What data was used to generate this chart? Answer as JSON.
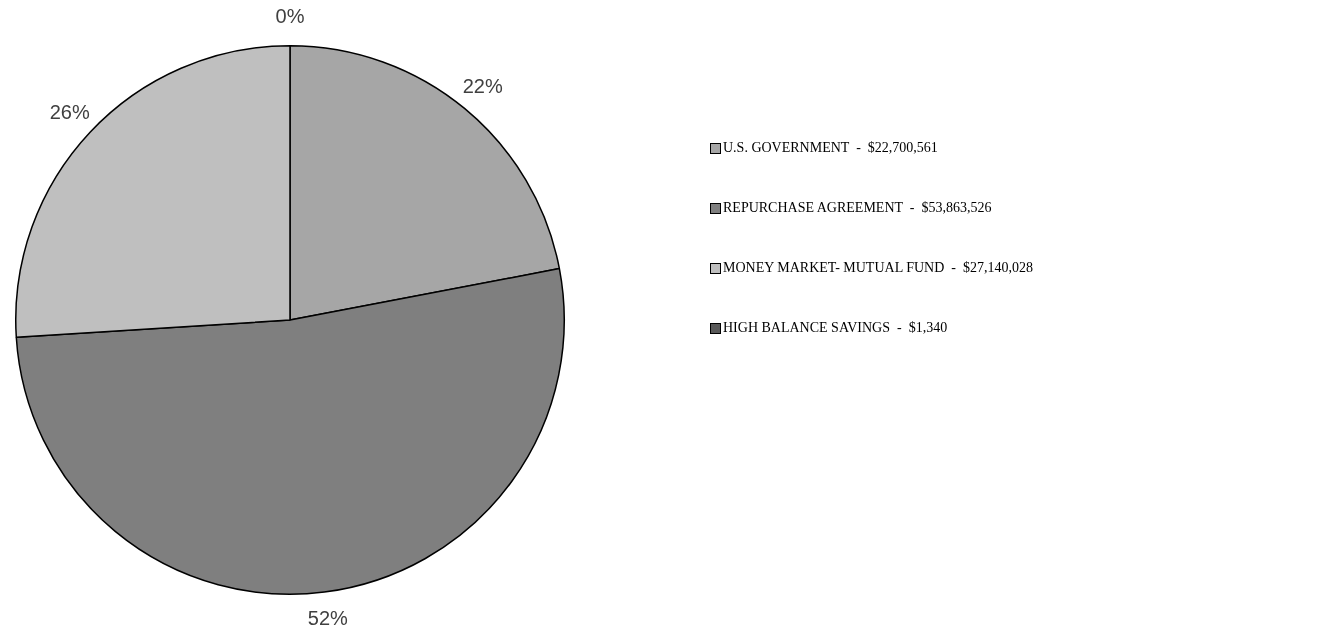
{
  "chart_data": {
    "type": "pie",
    "categories": [
      "U.S. GOVERNMENT  -  $22,700,561",
      "REPURCHASE AGREEMENT  -  $53,863,526",
      "MONEY MARKET- MUTUAL FUND  -  $27,140,028",
      "HIGH BALANCE SAVINGS  -  $1,340"
    ],
    "values": [
      22,
      52,
      26,
      0
    ],
    "value_labels": [
      "22%",
      "52%",
      "26%",
      "0%"
    ],
    "colors": [
      "#a6a6a6",
      "#7f7f7f",
      "#bfbfbf",
      "#595959"
    ],
    "legend": "right"
  }
}
